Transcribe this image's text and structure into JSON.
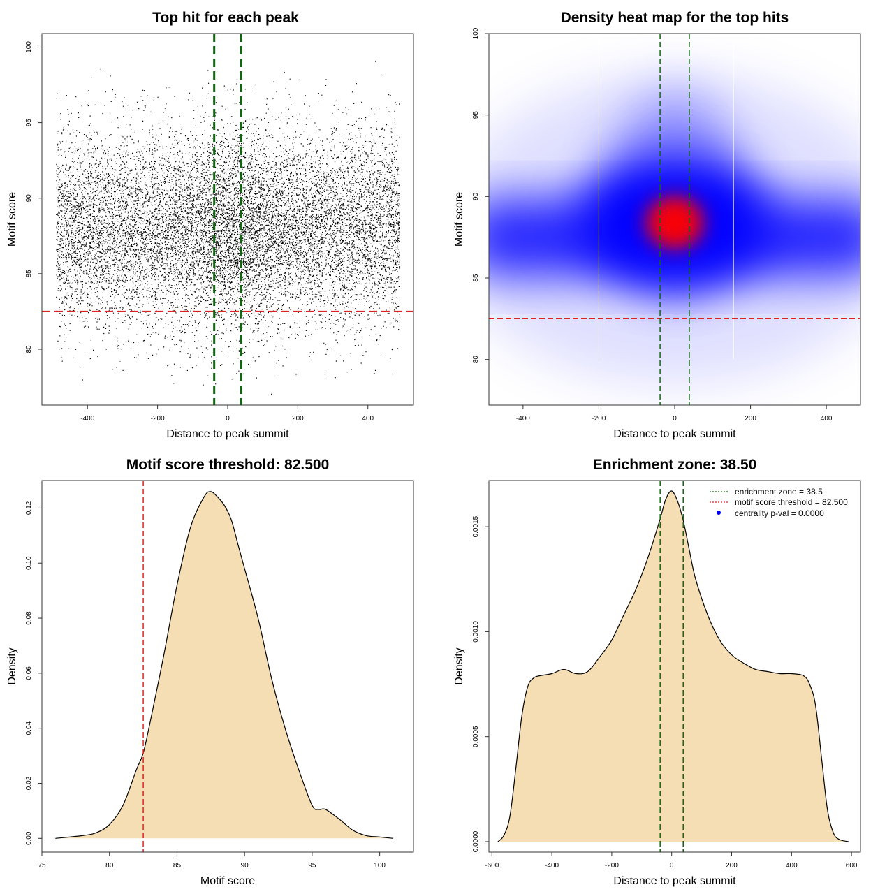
{
  "colors": {
    "threshold": "#dd2222",
    "zone": "#116611",
    "fill": "#f5deb3",
    "heat_low": "#ffffff",
    "heat_mid": "#0000ff",
    "heat_high": "#ff0000",
    "points": "#000000",
    "legend_dot": "#0000ff"
  },
  "chart_data": [
    {
      "type": "scatter",
      "title": "Top hit for each peak",
      "xlabel": "Distance to peak summit",
      "ylabel": "Motif score",
      "xlim": [
        -530,
        530
      ],
      "ylim": [
        76.3,
        100.9
      ],
      "xticks": [
        -400,
        -200,
        0,
        200,
        400
      ],
      "yticks": [
        80,
        85,
        90,
        95,
        100
      ],
      "threshold": 82.5,
      "zone": [
        -38.5,
        38.5
      ],
      "x_range": [
        -490,
        490
      ],
      "distribution": {
        "mean": 88,
        "sd": 3.2,
        "n_points": 14000
      }
    },
    {
      "type": "heatmap",
      "title": "Density heat map for the top hits",
      "xlabel": "Distance to peak summit",
      "ylabel": "Motif score",
      "xlim": [
        -490,
        490
      ],
      "ylim": [
        77.2,
        100.0
      ],
      "xticks": [
        -400,
        -200,
        0,
        200,
        400
      ],
      "yticks": [
        80,
        85,
        90,
        95,
        100
      ],
      "threshold": 82.5,
      "zone": [
        -38.5,
        38.5
      ],
      "peak": {
        "x": 0,
        "y": 88.4
      },
      "guides": [
        -200,
        155
      ]
    },
    {
      "type": "area",
      "title": "Motif score threshold: 82.500",
      "xlabel": "Motif score",
      "ylabel": "Density",
      "xlim": [
        75,
        102.5
      ],
      "ylim": [
        -0.005,
        0.13
      ],
      "xticks": [
        75,
        80,
        85,
        90,
        95,
        100
      ],
      "yticks": [
        0.0,
        0.02,
        0.04,
        0.06,
        0.08,
        0.1,
        0.12
      ],
      "ytick_labels": [
        "0.00",
        "0.02",
        "0.04",
        "0.06",
        "0.08",
        "0.10",
        "0.12"
      ],
      "threshold": 82.5,
      "x": [
        76,
        78,
        79,
        80,
        81,
        82,
        82.5,
        83,
        84,
        85,
        86,
        87,
        87.5,
        88,
        88.5,
        89,
        89.5,
        90,
        91,
        92,
        93,
        94,
        95,
        95.5,
        96,
        97,
        98,
        99,
        100,
        101
      ],
      "y": [
        0,
        0.001,
        0.002,
        0.005,
        0.012,
        0.025,
        0.031,
        0.042,
        0.066,
        0.092,
        0.113,
        0.124,
        0.126,
        0.124,
        0.121,
        0.116,
        0.107,
        0.098,
        0.08,
        0.058,
        0.04,
        0.025,
        0.012,
        0.0105,
        0.0105,
        0.007,
        0.003,
        0.001,
        0.0005,
        0
      ]
    },
    {
      "type": "area",
      "title": "Enrichment zone: 38.50",
      "xlabel": "Distance to peak summit",
      "ylabel": "Density",
      "xlim": [
        -610,
        630
      ],
      "ylim": [
        -5e-05,
        0.00172
      ],
      "xticks": [
        -600,
        -400,
        -200,
        0,
        200,
        400,
        600
      ],
      "yticks": [
        0.0,
        0.0005,
        0.001,
        0.0015
      ],
      "ytick_labels": [
        "0.0000",
        "0.0005",
        "0.0010",
        "0.0015"
      ],
      "zone": [
        -38.5,
        38.5
      ],
      "x": [
        -580,
        -560,
        -540,
        -520,
        -500,
        -480,
        -460,
        -440,
        -400,
        -360,
        -320,
        -280,
        -240,
        -200,
        -160,
        -120,
        -80,
        -40,
        -20,
        0,
        20,
        40,
        60,
        80,
        120,
        160,
        200,
        240,
        280,
        320,
        360,
        400,
        440,
        460,
        480,
        500,
        520,
        540,
        560,
        590
      ],
      "y": [
        0,
        3e-05,
        0.00012,
        0.00035,
        0.0006,
        0.00074,
        0.00078,
        0.00079,
        0.0008,
        0.00082,
        0.0008,
        0.00081,
        0.00088,
        0.00096,
        0.00108,
        0.0012,
        0.00135,
        0.00153,
        0.00163,
        0.00167,
        0.00162,
        0.00152,
        0.00138,
        0.00125,
        0.00108,
        0.00096,
        0.00089,
        0.00085,
        0.00082,
        0.00081,
        0.0008,
        0.0008,
        0.00079,
        0.00075,
        0.00065,
        0.0004,
        0.00015,
        4e-05,
        1e-05,
        0
      ]
    }
  ],
  "legend": {
    "items": [
      "enrichment zone = 38.5",
      "motif score threshold = 82.500",
      "centrality p-val = 0.0000"
    ]
  }
}
